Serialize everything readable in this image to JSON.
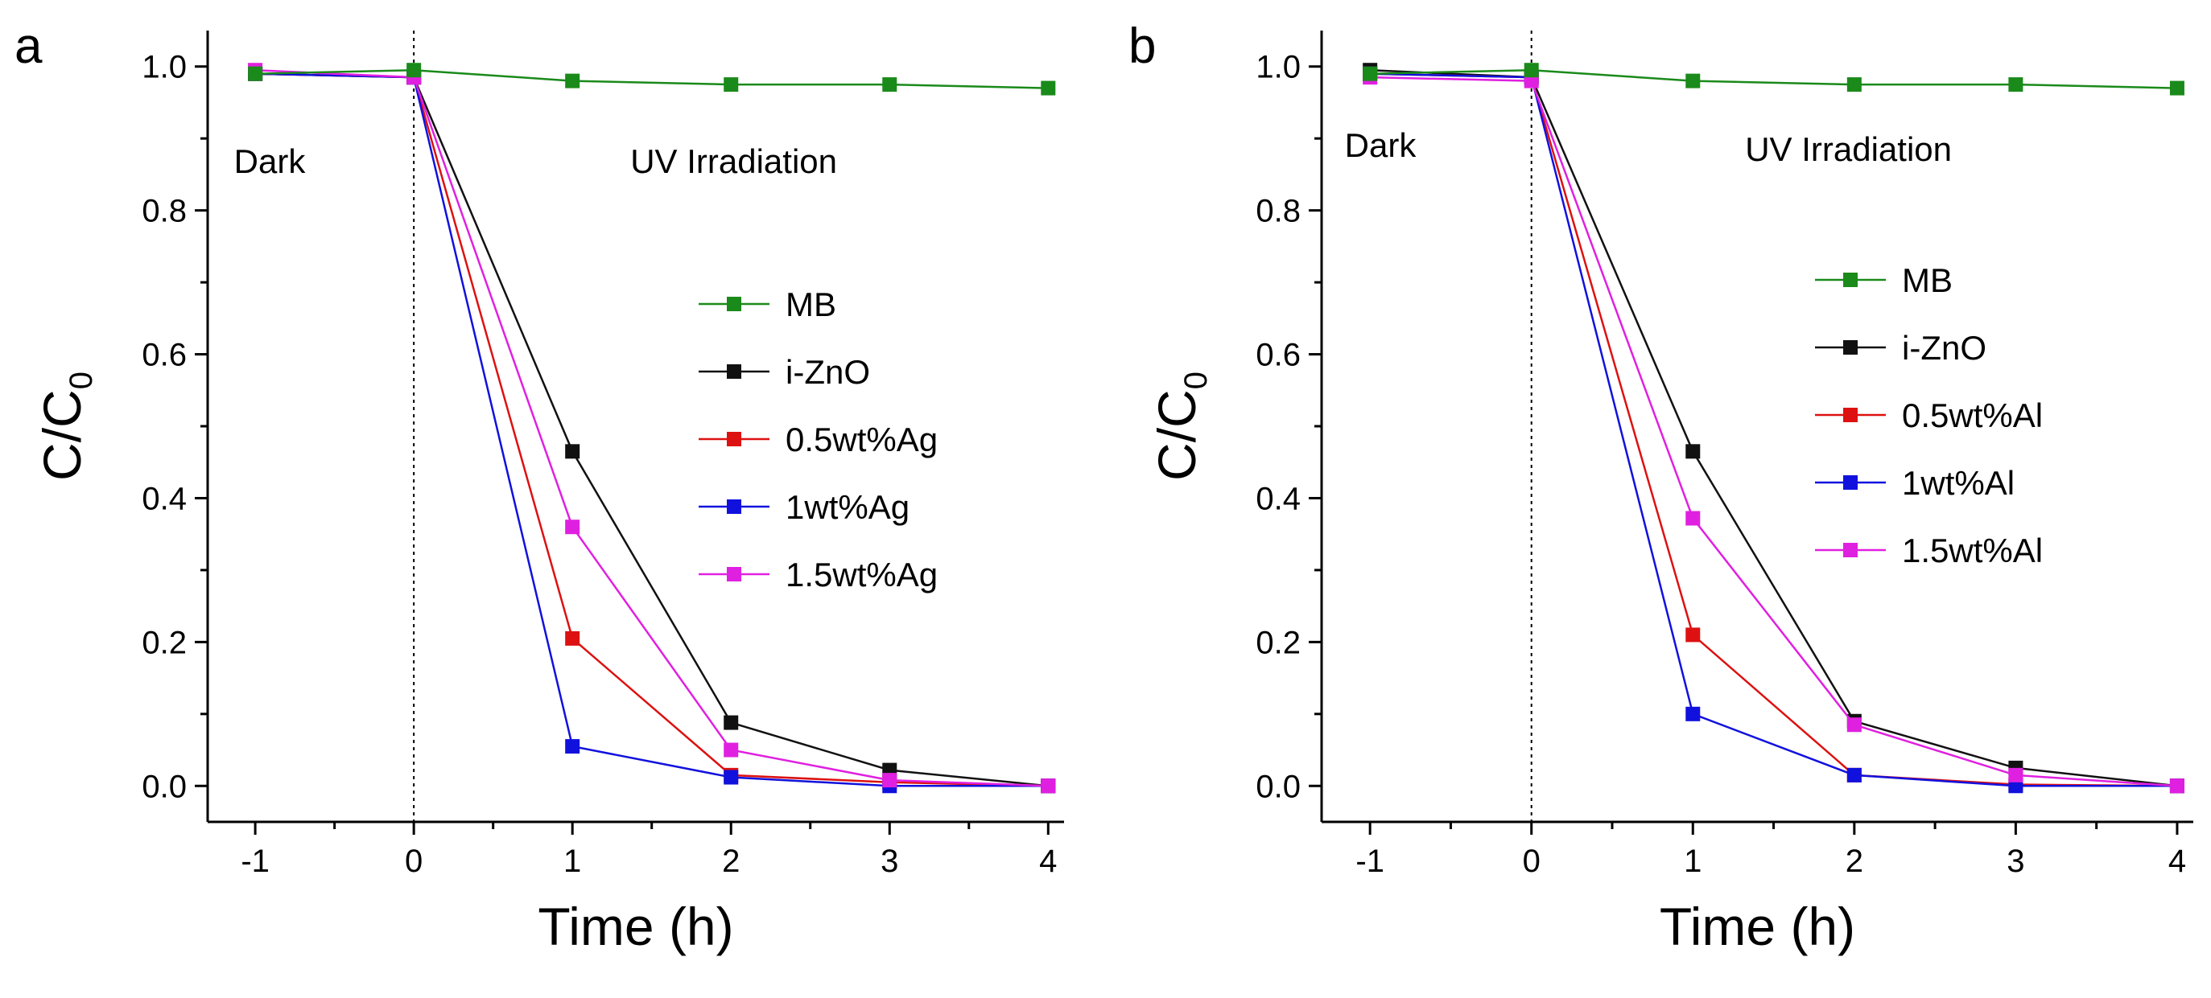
{
  "chart_data": [
    {
      "type": "line",
      "panel_label": "a",
      "xlabel": "Time (h)",
      "ylabel": "C/C0",
      "xlim": [
        -1.3,
        4.1
      ],
      "ylim": [
        -0.05,
        1.05
      ],
      "xticks": [
        -1,
        0,
        1,
        2,
        3,
        4
      ],
      "yticks": [
        0.0,
        0.2,
        0.4,
        0.6,
        0.8,
        1.0
      ],
      "tick_labels_x": [
        "-1",
        "0",
        "1",
        "2",
        "3",
        "4"
      ],
      "tick_labels_y": [
        "0.0",
        "0.2",
        "0.4",
        "0.6",
        "0.8",
        "1.0"
      ],
      "grid": false,
      "legend_position": "center-right",
      "annotations": [
        "Dark",
        "UV Irradiation"
      ],
      "vline_x": 0,
      "series": [
        {
          "name": "MB",
          "color": "#1a8a1a",
          "x": [
            -1,
            0,
            1,
            2,
            3,
            4
          ],
          "y": [
            0.99,
            0.995,
            0.98,
            0.975,
            0.975,
            0.97
          ]
        },
        {
          "name": "i-ZnO",
          "color": "#111111",
          "x": [
            -1,
            0,
            1,
            2,
            3,
            4
          ],
          "y": [
            0.99,
            0.985,
            0.465,
            0.088,
            0.022,
            0.0
          ]
        },
        {
          "name": "0.5wt%Ag",
          "color": "#dd1111",
          "x": [
            -1,
            0,
            1,
            2,
            3,
            4
          ],
          "y": [
            0.99,
            0.985,
            0.205,
            0.015,
            0.005,
            0.0
          ]
        },
        {
          "name": "1wt%Ag",
          "color": "#1111dd",
          "x": [
            -1,
            0,
            1,
            2,
            3,
            4
          ],
          "y": [
            0.99,
            0.985,
            0.055,
            0.012,
            0.0,
            0.0
          ]
        },
        {
          "name": "1.5wt%Ag",
          "color": "#e020e0",
          "x": [
            -1,
            0,
            1,
            2,
            3,
            4
          ],
          "y": [
            0.995,
            0.985,
            0.36,
            0.05,
            0.008,
            0.0
          ]
        }
      ]
    },
    {
      "type": "line",
      "panel_label": "b",
      "xlabel": "Time (h)",
      "ylabel": "C/C0",
      "xlim": [
        -1.3,
        4.1
      ],
      "ylim": [
        -0.05,
        1.05
      ],
      "xticks": [
        -1,
        0,
        1,
        2,
        3,
        4
      ],
      "yticks": [
        0.0,
        0.2,
        0.4,
        0.6,
        0.8,
        1.0
      ],
      "tick_labels_x": [
        "-1",
        "0",
        "1",
        "2",
        "3",
        "4"
      ],
      "tick_labels_y": [
        "0.0",
        "0.2",
        "0.4",
        "0.6",
        "0.8",
        "1.0"
      ],
      "grid": false,
      "legend_position": "center-right",
      "annotations": [
        "Dark",
        "UV Irradiation"
      ],
      "vline_x": 0,
      "series": [
        {
          "name": "MB",
          "color": "#1a8a1a",
          "x": [
            -1,
            0,
            1,
            2,
            3,
            4
          ],
          "y": [
            0.99,
            0.995,
            0.98,
            0.975,
            0.975,
            0.97
          ]
        },
        {
          "name": "i-ZnO",
          "color": "#111111",
          "x": [
            -1,
            0,
            1,
            2,
            3,
            4
          ],
          "y": [
            0.995,
            0.985,
            0.465,
            0.09,
            0.025,
            0.0
          ]
        },
        {
          "name": "0.5wt%Al",
          "color": "#dd1111",
          "x": [
            -1,
            0,
            1,
            2,
            3,
            4
          ],
          "y": [
            0.99,
            0.985,
            0.21,
            0.015,
            0.002,
            0.0
          ]
        },
        {
          "name": "1wt%Al",
          "color": "#1111dd",
          "x": [
            -1,
            0,
            1,
            2,
            3,
            4
          ],
          "y": [
            0.99,
            0.985,
            0.1,
            0.015,
            0.0,
            0.0
          ]
        },
        {
          "name": "1.5wt%Al",
          "color": "#e020e0",
          "x": [
            -1,
            0,
            1,
            2,
            3,
            4
          ],
          "y": [
            0.985,
            0.98,
            0.372,
            0.085,
            0.015,
            0.0
          ]
        }
      ]
    }
  ]
}
